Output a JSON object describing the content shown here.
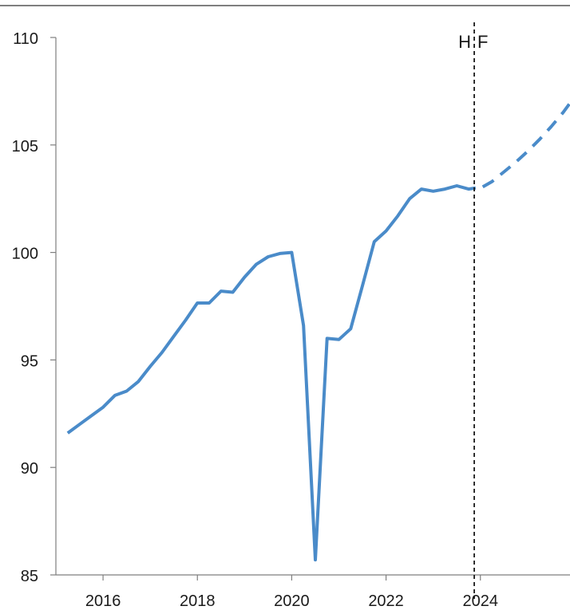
{
  "chart_data": {
    "type": "line",
    "title": "",
    "xlabel": "",
    "ylabel": "",
    "xlim": [
      2015.0,
      2025.9
    ],
    "ylim": [
      85,
      110
    ],
    "x_ticks": [
      2016,
      2018,
      2020,
      2022,
      2024
    ],
    "x_tick_labels": [
      "2016",
      "2018",
      "2020",
      "2022",
      "2024"
    ],
    "y_ticks": [
      85,
      90,
      95,
      100,
      105,
      110
    ],
    "y_tick_labels": [
      "85",
      "90",
      "95",
      "100",
      "105",
      "110"
    ],
    "grid": false,
    "legend": "none",
    "annotations": {
      "divider_x": 2023.87,
      "history_label": "H",
      "forecast_label": "F"
    },
    "colors": {
      "series": "#4a8bc9",
      "divider": "#1a1a1a",
      "axis": "#7f7f7f"
    },
    "series": [
      {
        "style": "solid",
        "x": [
          2015.25,
          2015.5,
          2015.75,
          2016.0,
          2016.25,
          2016.5,
          2016.75,
          2017.0,
          2017.25,
          2017.5,
          2017.75,
          2018.0,
          2018.25,
          2018.5,
          2018.75,
          2019.0,
          2019.25,
          2019.5,
          2019.75,
          2020.0,
          2020.25,
          2020.5,
          2020.75,
          2021.0,
          2021.25,
          2021.5,
          2021.75,
          2022.0,
          2022.25,
          2022.5,
          2022.75,
          2023.0,
          2023.25,
          2023.5,
          2023.75,
          2023.9
        ],
        "y": [
          91.6,
          92.0,
          92.4,
          92.8,
          93.35,
          93.55,
          94.0,
          94.7,
          95.35,
          96.1,
          96.85,
          97.65,
          97.65,
          98.2,
          98.15,
          98.85,
          99.45,
          99.8,
          99.95,
          100.0,
          96.6,
          85.7,
          96.0,
          95.95,
          96.45,
          98.45,
          100.5,
          101.0,
          101.7,
          102.5,
          102.95,
          102.85,
          102.95,
          103.1,
          102.95,
          103.0
        ]
      },
      {
        "style": "dashed",
        "x": [
          2024.05,
          2024.25,
          2024.5,
          2024.75,
          2025.0,
          2025.25,
          2025.5,
          2025.75,
          2025.95
        ],
        "y": [
          103.05,
          103.3,
          103.75,
          104.2,
          104.7,
          105.25,
          105.85,
          106.5,
          107.1
        ]
      }
    ]
  }
}
